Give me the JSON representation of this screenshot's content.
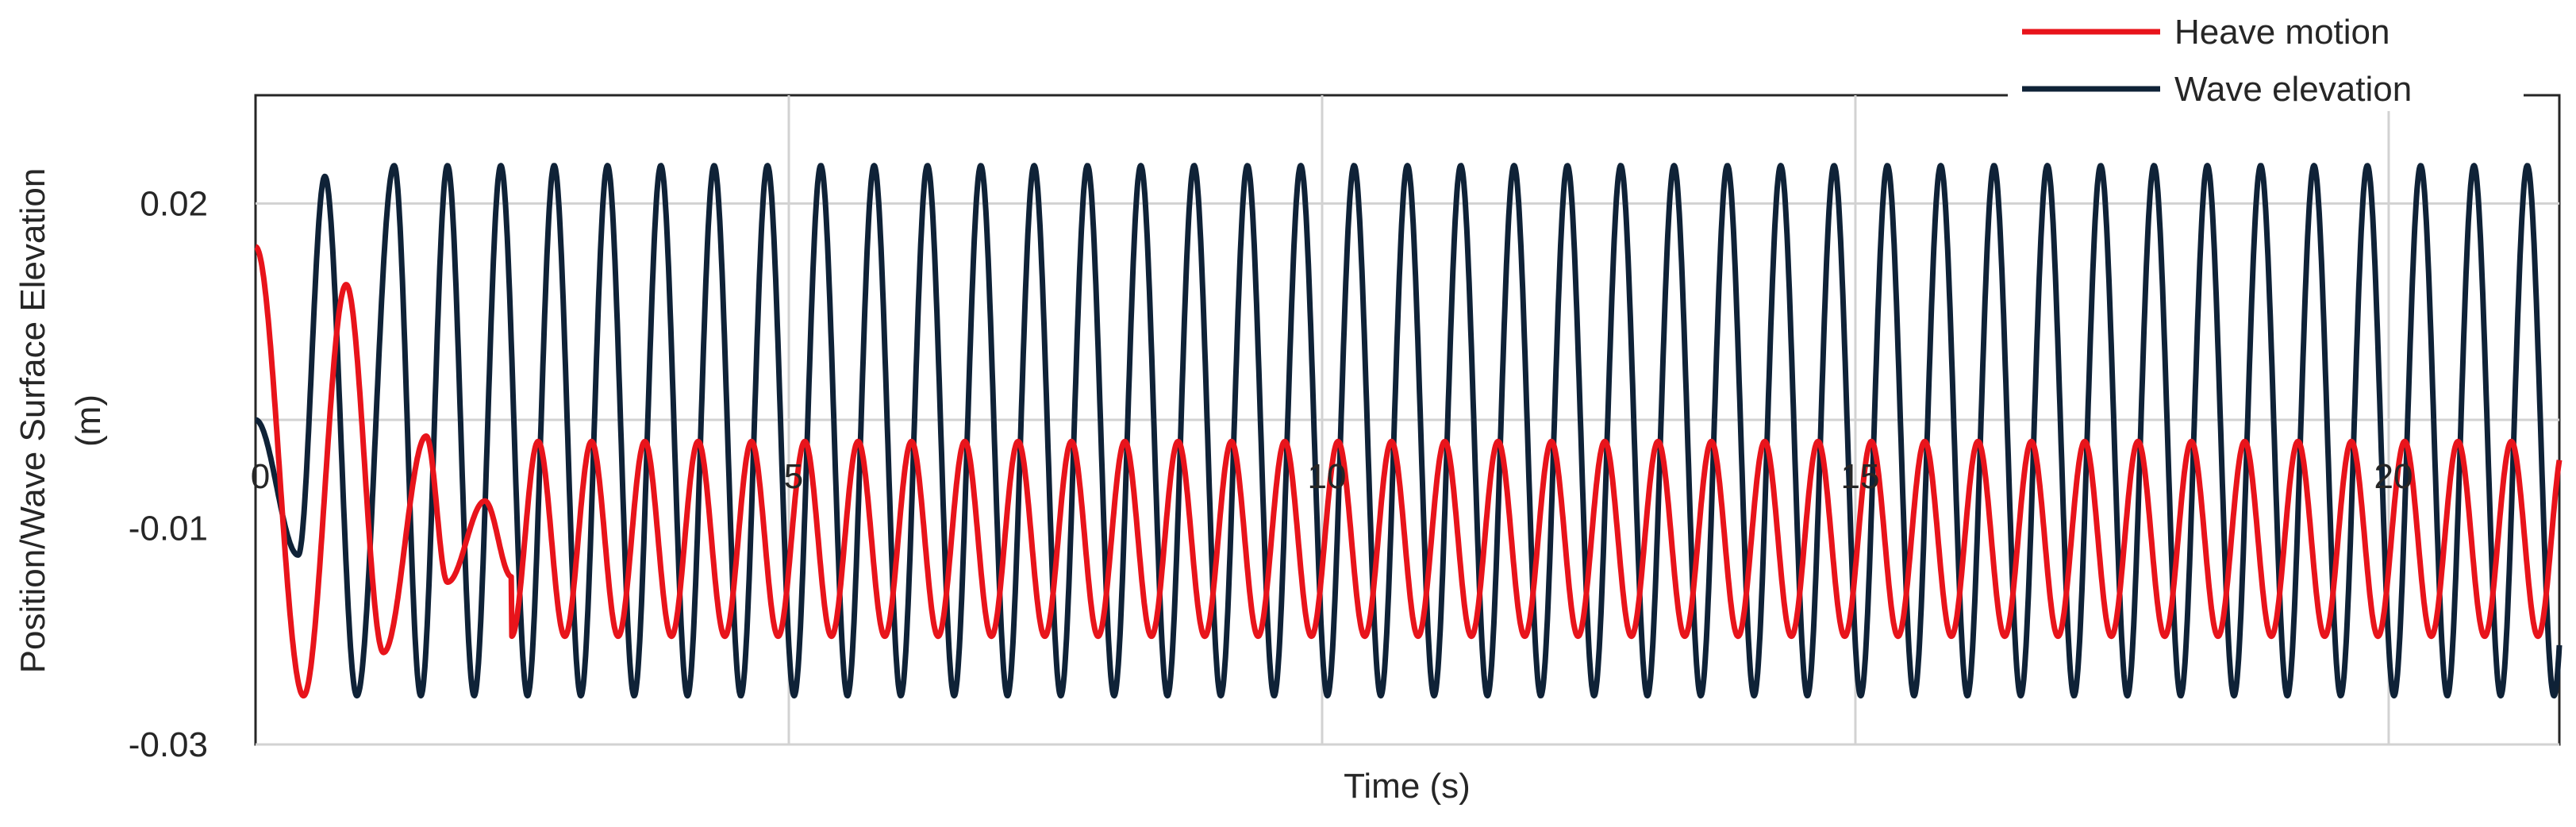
{
  "chart_data": {
    "type": "line",
    "title": "",
    "xlabel": "Time (s)",
    "ylabel_lines": [
      "Position/Wave Surface  Elevation",
      "(m)"
    ],
    "xlim": [
      0,
      21.6
    ],
    "ylim": [
      -0.03,
      0.03
    ],
    "x_ticks": [
      {
        "value": 0,
        "label": "0"
      },
      {
        "value": 5,
        "label": "5"
      },
      {
        "value": 10,
        "label": "10"
      },
      {
        "value": 15,
        "label": "15"
      },
      {
        "value": 20,
        "label": "20"
      }
    ],
    "y_ticks": [
      {
        "value": -0.03,
        "label": "-0.03"
      },
      {
        "value": -0.01,
        "label": "-0.01"
      },
      {
        "value": 0.02,
        "label": "0.02"
      }
    ],
    "y_gridlines": [
      -0.03,
      0.0,
      0.02
    ],
    "x_gridlines": [
      5,
      10,
      15,
      20
    ],
    "grid": true,
    "legend_position": "top-right",
    "series": [
      {
        "name": "Heave motion",
        "color": "#e8141b",
        "model": "damped transient then periodic",
        "initial_value": 0.016,
        "steady_center": -0.011,
        "steady_amplitude": 0.009,
        "period_s": 0.5,
        "notable_points": [
          {
            "x": 0.0,
            "y": 0.016
          },
          {
            "x": 0.45,
            "y": -0.0255
          },
          {
            "x": 0.85,
            "y": 0.0125
          },
          {
            "x": 1.2,
            "y": -0.0215
          },
          {
            "x": 1.6,
            "y": -0.0015
          },
          {
            "x": 1.8,
            "y": -0.015
          },
          {
            "x": 2.15,
            "y": -0.0075
          },
          {
            "x": 2.4,
            "y": -0.0145
          }
        ]
      },
      {
        "name": "Wave elevation",
        "color": "#0f2237",
        "model": "periodic",
        "initial_value": 0.0,
        "max": 0.0235,
        "min": -0.0255,
        "period_s": 0.5,
        "notable_points": [
          {
            "x": 0.0,
            "y": 0.0
          },
          {
            "x": 0.4,
            "y": -0.0125
          },
          {
            "x": 0.65,
            "y": 0.0225
          },
          {
            "x": 0.95,
            "y": -0.0255
          },
          {
            "x": 1.3,
            "y": 0.0235
          },
          {
            "x": 21.6,
            "y": -0.0245
          }
        ]
      }
    ]
  }
}
